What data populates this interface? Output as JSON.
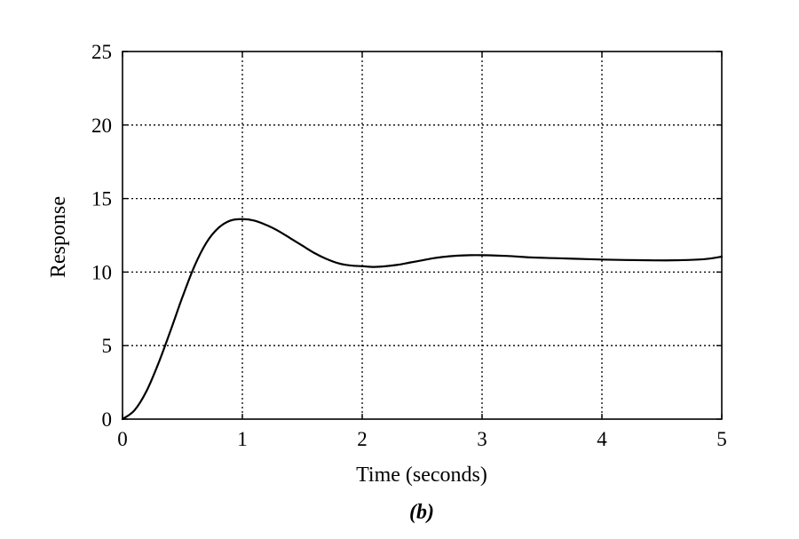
{
  "chart_data": {
    "type": "line",
    "title": "",
    "xlabel": "Time (seconds)",
    "ylabel": "Response",
    "caption": {
      "open": "(",
      "letter": "b",
      "close": ")"
    },
    "xlim": [
      0,
      5
    ],
    "ylim": [
      0,
      25
    ],
    "xticks": [
      0,
      1,
      2,
      3,
      4,
      5
    ],
    "yticks": [
      0,
      5,
      10,
      15,
      20,
      25
    ],
    "grid": true,
    "grid_style": "dotted",
    "legend": "none",
    "line_color": "#000000",
    "series": [
      {
        "x": [
          0,
          0.1,
          0.2,
          0.3,
          0.4,
          0.5,
          0.6,
          0.7,
          0.8,
          0.9,
          1.0,
          1.1,
          1.2,
          1.3,
          1.4,
          1.5,
          1.6,
          1.7,
          1.8,
          1.9,
          2.0,
          2.1,
          2.2,
          2.3,
          2.4,
          2.5,
          2.6,
          2.7,
          2.8,
          2.9,
          3.0,
          3.2,
          3.4,
          3.6,
          3.8,
          4.0,
          4.2,
          4.4,
          4.6,
          4.8,
          4.9,
          5.0
        ],
        "y": [
          0,
          0.6,
          1.9,
          3.8,
          6.0,
          8.3,
          10.4,
          12.0,
          13.0,
          13.5,
          13.6,
          13.5,
          13.2,
          12.8,
          12.3,
          11.8,
          11.3,
          10.9,
          10.6,
          10.45,
          10.4,
          10.35,
          10.4,
          10.5,
          10.65,
          10.8,
          10.95,
          11.05,
          11.12,
          11.15,
          11.15,
          11.1,
          11.0,
          10.95,
          10.9,
          10.85,
          10.82,
          10.8,
          10.8,
          10.85,
          10.92,
          11.05
        ]
      }
    ]
  }
}
